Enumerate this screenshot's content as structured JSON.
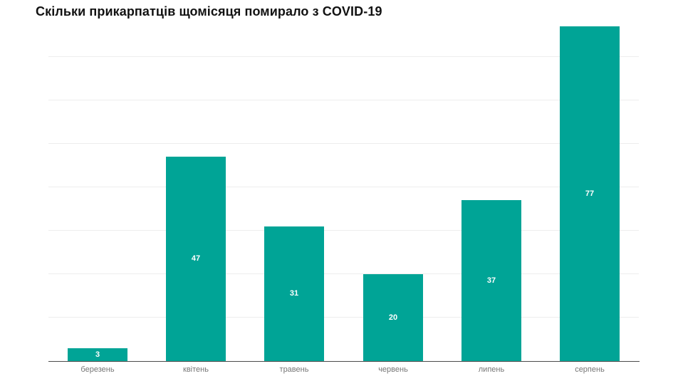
{
  "title": "Скільки прикарпатців щомісяця помирало з COVID-19",
  "chart_data": {
    "type": "bar",
    "title": "Скільки прикарпатців щомісяця помирало з COVID-19",
    "categories": [
      "березень",
      "квітень",
      "травень",
      "червень",
      "липень",
      "серпень"
    ],
    "values": [
      3,
      47,
      31,
      20,
      37,
      77
    ],
    "xlabel": "",
    "ylabel": "",
    "ylim": [
      0,
      83
    ],
    "gridline_values": [
      10,
      20,
      30,
      40,
      50,
      60,
      70
    ],
    "grid": true,
    "legend": false,
    "value_labels_position": "centered-inside-bar",
    "colors": {
      "bar": "#00a496",
      "value_label": "#ffffff",
      "axis_label": "#767676",
      "gridline": "#ededed",
      "axis_line": "#4b4b4b",
      "title": "#121212",
      "background": "#ffffff"
    }
  }
}
